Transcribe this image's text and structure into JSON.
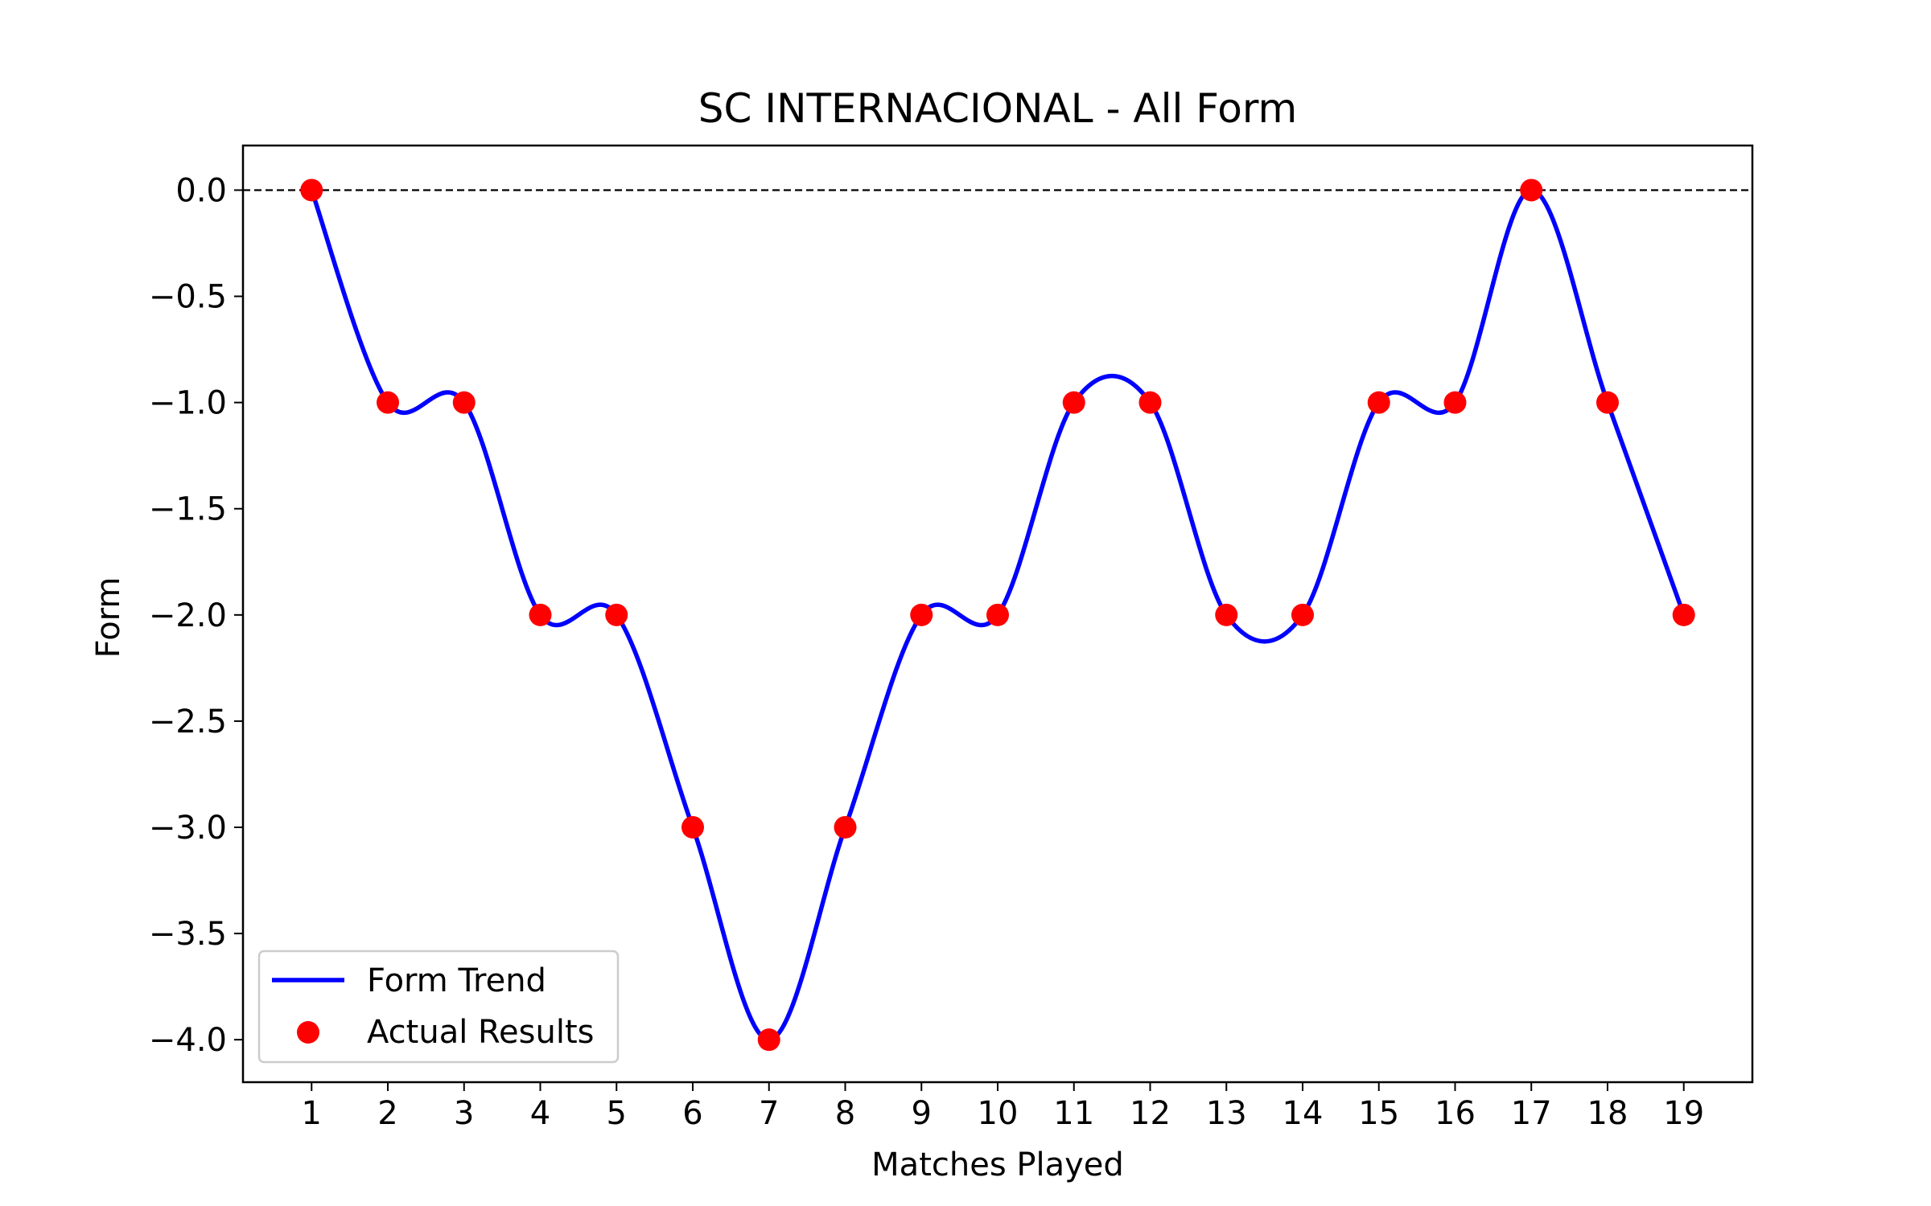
{
  "chart_data": {
    "type": "line",
    "title": "SC INTERNACIONAL - All Form",
    "xlabel": "Matches Played",
    "ylabel": "Form",
    "xlim": [
      0.1,
      19.9
    ],
    "ylim": [
      -4.2,
      0.21
    ],
    "x_ticks": [
      1,
      2,
      3,
      4,
      5,
      6,
      7,
      8,
      9,
      10,
      11,
      12,
      13,
      14,
      15,
      16,
      17,
      18,
      19
    ],
    "y_ticks": [
      0.0,
      -0.5,
      -1.0,
      -1.5,
      -2.0,
      -2.5,
      -3.0,
      -3.5,
      -4.0
    ],
    "y_tick_labels": [
      "0.0",
      "−0.5",
      "−1.0",
      "−1.5",
      "−2.0",
      "−2.5",
      "−3.0",
      "−3.5",
      "−4.0"
    ],
    "reference_line": {
      "y": 0,
      "style": "dashed",
      "color": "#000000"
    },
    "grid": false,
    "legend_position": "lower-left",
    "series": [
      {
        "name": "Form Trend",
        "kind": "line",
        "color": "#0000ff",
        "x": [
          1,
          2,
          3,
          4,
          5,
          6,
          7,
          8,
          9,
          10,
          11,
          12,
          13,
          14,
          15,
          16,
          17,
          18,
          19
        ],
        "y": [
          0,
          -1,
          -1,
          -2,
          -2,
          -3,
          -4,
          -3,
          -2,
          -2,
          -1,
          -1,
          -2,
          -2,
          -1,
          -1,
          0,
          -1,
          -2
        ]
      },
      {
        "name": "Actual Results",
        "kind": "scatter",
        "color": "#ff0000",
        "x": [
          1,
          2,
          3,
          4,
          5,
          6,
          7,
          8,
          9,
          10,
          11,
          12,
          13,
          14,
          15,
          16,
          17,
          18,
          19
        ],
        "y": [
          0,
          -1,
          -1,
          -2,
          -2,
          -3,
          -4,
          -3,
          -2,
          -2,
          -1,
          -1,
          -2,
          -2,
          -1,
          -1,
          0,
          -1,
          -2
        ]
      }
    ]
  }
}
